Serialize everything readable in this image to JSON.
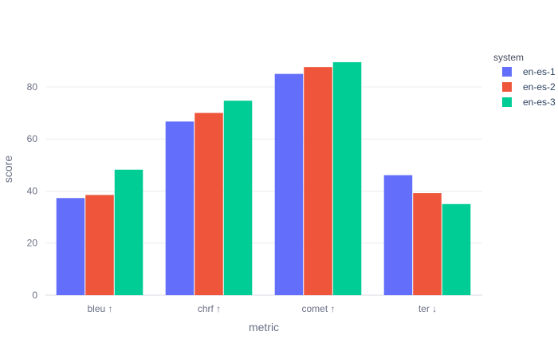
{
  "chart_data": {
    "type": "bar",
    "xlabel": "metric",
    "ylabel": "score",
    "categories": [
      "bleu ↑",
      "chrf ↑",
      "comet ↑",
      "ter ↓"
    ],
    "ylim": [
      0,
      95
    ],
    "yticks": [
      0,
      20,
      40,
      60,
      80
    ],
    "grid": true,
    "legend_title": "system",
    "legend_position": "top-right",
    "series": [
      {
        "name": "en-es-1",
        "color": "#636efa",
        "values": [
          37.3,
          66.7,
          85.0,
          46.1
        ]
      },
      {
        "name": "en-es-2",
        "color": "#ef553b",
        "values": [
          38.5,
          70.0,
          87.6,
          39.2
        ]
      },
      {
        "name": "en-es-3",
        "color": "#00cc96",
        "values": [
          48.2,
          74.7,
          89.5,
          35.0
        ]
      }
    ]
  }
}
